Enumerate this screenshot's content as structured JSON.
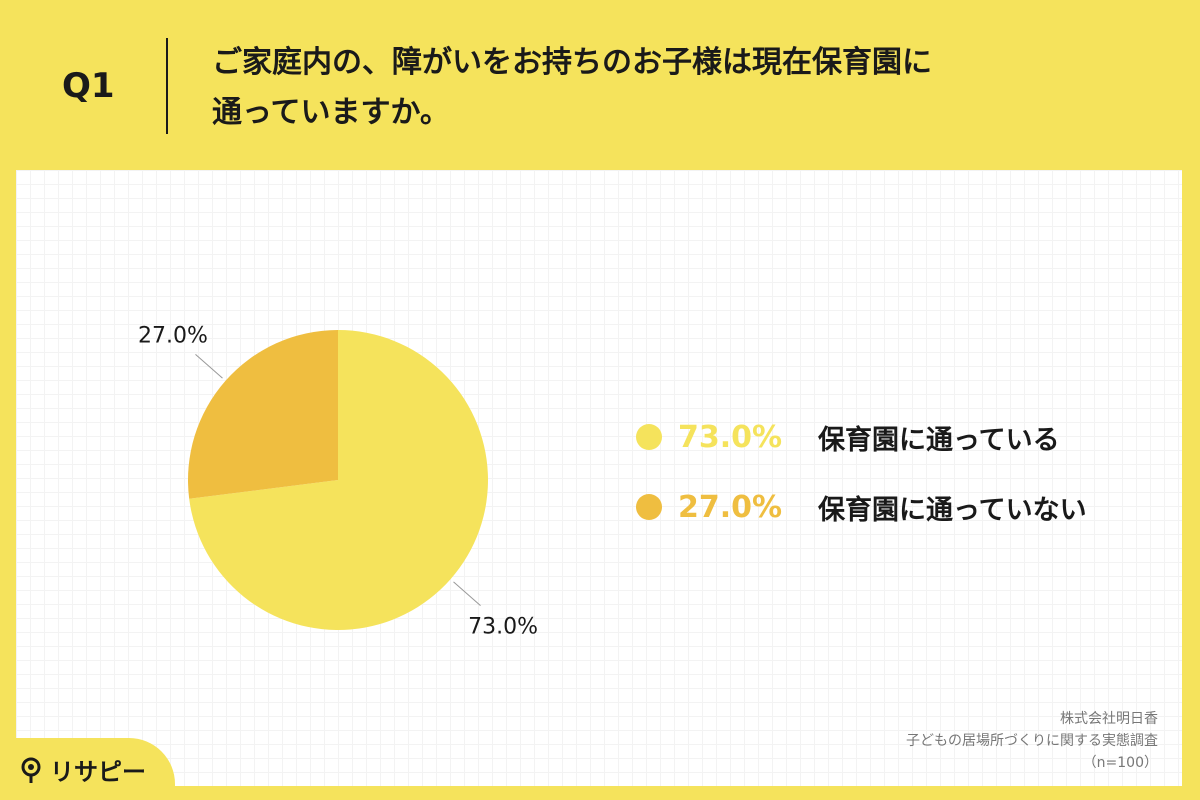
{
  "question": {
    "number": "Q1",
    "line1": "ご家庭内の、障がいをお持ちのお子様は現在保育園に",
    "line2": "通っていますか。"
  },
  "chart_data": {
    "type": "pie",
    "categories": [
      "保育園に通っている",
      "保育園に通っていない"
    ],
    "values": [
      73.0,
      27.0
    ],
    "labels": [
      "73.0%",
      "27.0%"
    ],
    "colors": [
      "#f5e35c",
      "#efbe40"
    ],
    "start_angle_deg": 0,
    "direction": "clockwise",
    "legend_position": "right"
  },
  "legend": [
    {
      "pct": "73.0%",
      "label": "保育園に通っている",
      "color": "#f5e35c"
    },
    {
      "pct": "27.0%",
      "label": "保育園に通っていない",
      "color": "#efbe40"
    }
  ],
  "source": {
    "company": "株式会社明日香",
    "survey": "子どもの居場所づくりに関する実態調査",
    "n": "（n=100）"
  },
  "brand": {
    "logo_text": "リサピー",
    "icon": "lens-icon"
  }
}
